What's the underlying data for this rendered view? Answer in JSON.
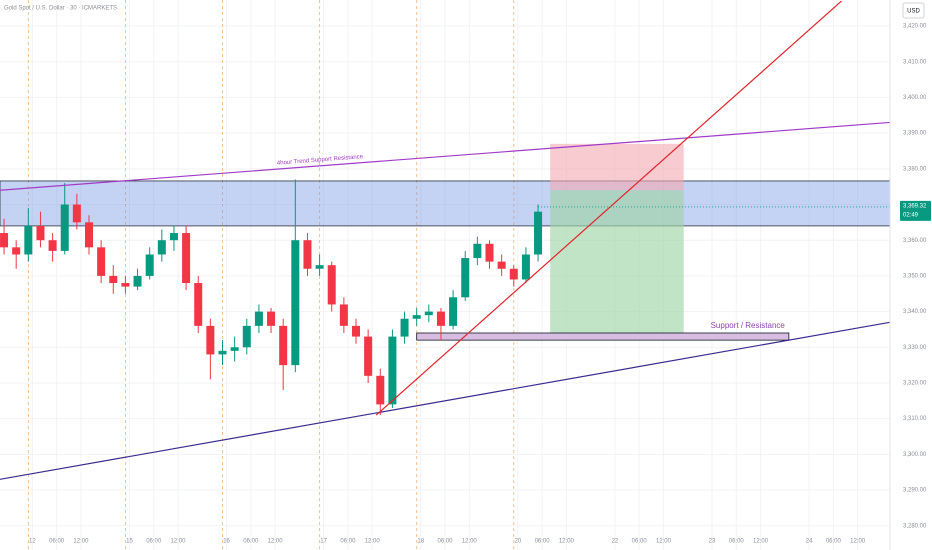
{
  "chart_data": {
    "type": "candlestick",
    "title": "Gold Spot / U.S. Dollar · 30 · ICMARKETS",
    "currency": "USD",
    "x": [
      -7,
      -4,
      -1,
      2,
      5,
      8,
      11,
      14,
      17,
      20,
      23,
      26,
      29,
      32,
      35,
      38,
      41,
      44,
      47,
      50,
      53,
      56,
      59,
      62,
      65,
      68,
      71,
      74,
      77,
      80,
      83,
      86,
      89,
      92,
      95,
      98,
      101,
      104,
      107,
      110,
      113,
      116,
      119,
      122,
      125
    ],
    "ohlc": [
      [
        3362,
        3366,
        3356,
        3358
      ],
      [
        3358,
        3360,
        3352,
        3356
      ],
      [
        3356,
        3369,
        3354,
        3364
      ],
      [
        3364,
        3368,
        3358,
        3360
      ],
      [
        3360,
        3362,
        3354,
        3357
      ],
      [
        3357,
        3376,
        3356,
        3370
      ],
      [
        3370,
        3373,
        3363,
        3365
      ],
      [
        3365,
        3367,
        3356,
        3358
      ],
      [
        3358,
        3360,
        3348,
        3350
      ],
      [
        3350,
        3353,
        3345,
        3348
      ],
      [
        3348,
        3350,
        3345,
        3347
      ],
      [
        3347,
        3352,
        3346,
        3350
      ],
      [
        3350,
        3358,
        3349,
        3356
      ],
      [
        3356,
        3363,
        3354,
        3360
      ],
      [
        3360,
        3364,
        3357,
        3362
      ],
      [
        3362,
        3364,
        3346,
        3348
      ],
      [
        3348,
        3350,
        3334,
        3336
      ],
      [
        3336,
        3338,
        3321,
        3328
      ],
      [
        3328,
        3332,
        3325,
        3329
      ],
      [
        3329,
        3333,
        3326,
        3330
      ],
      [
        3330,
        3338,
        3328,
        3336
      ],
      [
        3336,
        3342,
        3334,
        3340
      ],
      [
        3340,
        3341,
        3334,
        3336
      ],
      [
        3336,
        3338,
        3318,
        3325
      ],
      [
        3325,
        3377,
        3323,
        3360
      ],
      [
        3360,
        3362,
        3350,
        3352
      ],
      [
        3352,
        3356,
        3350,
        3353
      ],
      [
        3353,
        3354,
        3340,
        3342
      ],
      [
        3342,
        3344,
        3334,
        3336
      ],
      [
        3336,
        3338,
        3331,
        3333
      ],
      [
        3333,
        3335,
        3320,
        3322
      ],
      [
        3322,
        3324,
        3311,
        3314
      ],
      [
        3314,
        3335,
        3313,
        3333
      ],
      [
        3333,
        3340,
        3331,
        3338
      ],
      [
        3338,
        3341,
        3336,
        3339
      ],
      [
        3339,
        3342,
        3337,
        3340
      ],
      [
        3340,
        3341,
        3332,
        3336
      ],
      [
        3336,
        3346,
        3335,
        3344
      ],
      [
        3344,
        3357,
        3343,
        3355
      ],
      [
        3355,
        3361,
        3353,
        3359
      ],
      [
        3359,
        3360,
        3352,
        3354
      ],
      [
        3354,
        3356,
        3350,
        3352
      ],
      [
        3352,
        3353,
        3347,
        3349
      ],
      [
        3349,
        3358,
        3348,
        3356
      ],
      [
        3356,
        3370,
        3354,
        3368
      ]
    ],
    "up_color": "#089981",
    "down_color": "#f23645",
    "last_price": {
      "value": 3369.32,
      "label": "3,369.32"
    },
    "countdown": "02:49",
    "xlim": [
      -8,
      212
    ],
    "ylim": [
      3273.2,
      3427.3
    ],
    "xticks": [
      {
        "value": 0,
        "label": "12"
      },
      {
        "value": 6,
        "label": "06:00"
      },
      {
        "value": 12,
        "label": "12:00"
      },
      {
        "value": 24,
        "label": "15"
      },
      {
        "value": 30,
        "label": "06:00"
      },
      {
        "value": 36,
        "label": "12:00"
      },
      {
        "value": 48,
        "label": "16"
      },
      {
        "value": 54,
        "label": "06:00"
      },
      {
        "value": 60,
        "label": "12:00"
      },
      {
        "value": 72,
        "label": "17"
      },
      {
        "value": 78,
        "label": "06:00"
      },
      {
        "value": 84,
        "label": "12:00"
      },
      {
        "value": 96,
        "label": "18"
      },
      {
        "value": 102,
        "label": "06:00"
      },
      {
        "value": 108,
        "label": "12:00"
      },
      {
        "value": 120,
        "label": "20"
      },
      {
        "value": 126,
        "label": "06:00"
      },
      {
        "value": 132,
        "label": "12:00"
      },
      {
        "value": 144,
        "label": "22"
      },
      {
        "value": 150,
        "label": "06:00"
      },
      {
        "value": 156,
        "label": "12:00"
      },
      {
        "value": 168,
        "label": "23"
      },
      {
        "value": 174,
        "label": "06:00"
      },
      {
        "value": 180,
        "label": "12:00"
      },
      {
        "value": 192,
        "label": "24"
      },
      {
        "value": 198,
        "label": "06:00"
      },
      {
        "value": 204,
        "label": "12:00"
      }
    ],
    "yticks": [
      {
        "value": 3420,
        "label": "3,420.00"
      },
      {
        "value": 3410,
        "label": "3,410.00"
      },
      {
        "value": 3400,
        "label": "3,400.00"
      },
      {
        "value": 3390,
        "label": "3,390.00"
      },
      {
        "value": 3380,
        "label": "3,380.00"
      },
      {
        "value": 3370,
        "label": "3,370.00"
      },
      {
        "value": 3360,
        "label": "3,360.00"
      },
      {
        "value": 3350,
        "label": "3,350.00"
      },
      {
        "value": 3340,
        "label": "3,340.00"
      },
      {
        "value": 3330,
        "label": "3,330.00"
      },
      {
        "value": 3320,
        "label": "3,320.00"
      },
      {
        "value": 3310,
        "label": "3,310.00"
      },
      {
        "value": 3300,
        "label": "3,300.00"
      },
      {
        "value": 3290,
        "label": "3,290.00"
      },
      {
        "value": 3280,
        "label": "3,280.00"
      }
    ],
    "grid": true,
    "zone": {
      "y": [
        3364,
        3376.6
      ],
      "color": "#7c9be6"
    },
    "lines": [
      {
        "name": "4hour Trend Support Resistance",
        "color": "#a23bc9",
        "points": [
          [
            -8,
            3374
          ],
          [
            212,
            3393
          ]
        ]
      },
      {
        "color": "#3b2a8f",
        "points": [
          [
            -8,
            3293
          ],
          [
            212,
            3337
          ]
        ]
      },
      {
        "color": "#e3242b",
        "points": [
          [
            85,
            3311
          ],
          [
            200,
            3427
          ]
        ]
      }
    ],
    "box": {
      "name": "Support / Resistance",
      "x": [
        95,
        187
      ],
      "y": [
        3332,
        3334
      ],
      "color": "#8e44ad"
    },
    "position": {
      "x": [
        128,
        161
      ],
      "entry": 3374,
      "stop": 3387,
      "target": 3334
    }
  }
}
